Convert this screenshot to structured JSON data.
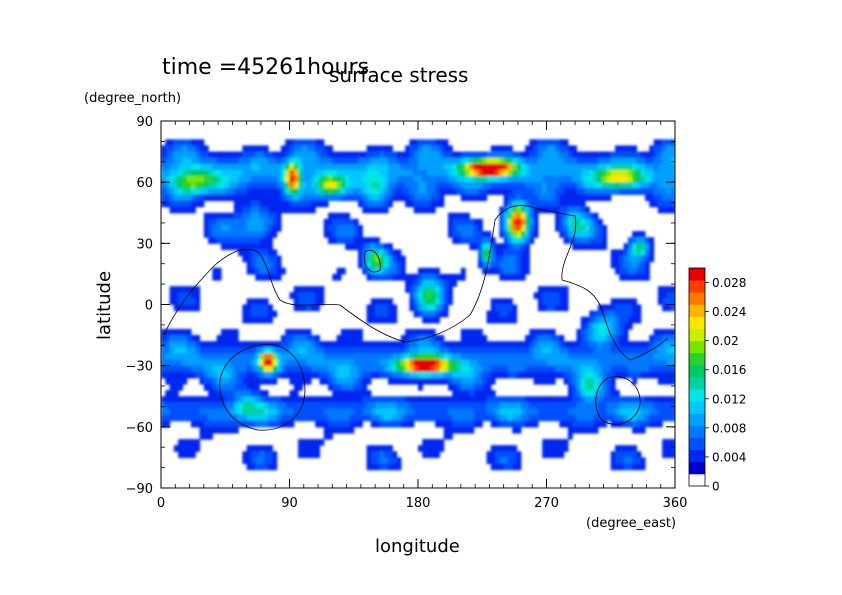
{
  "chart_data": {
    "type": "heatmap",
    "time_label": "time =45261hours",
    "title": "surface stress",
    "xlabel": "longitude",
    "ylabel": "latitude",
    "x_unit": "(degree_east)",
    "y_unit": "(degree_north)",
    "xlim": [
      0,
      360
    ],
    "ylim": [
      -90,
      90
    ],
    "x_ticks": [
      "0",
      "90",
      "180",
      "270",
      "360"
    ],
    "y_ticks": [
      "90",
      "60",
      "30",
      "0",
      "−30",
      "−60",
      "−90"
    ],
    "colorbar": {
      "range": [
        0,
        0.03
      ],
      "ticks": [
        "0",
        "0.004",
        "0.008",
        "0.012",
        "0.016",
        "0.02",
        "0.024",
        "0.028"
      ],
      "colors": [
        "#ffffff",
        "#0000c8",
        "#0028f0",
        "#0050ff",
        "#0078ff",
        "#00a0ff",
        "#00c8ff",
        "#00e6e6",
        "#00d2a0",
        "#00c864",
        "#28d228",
        "#78e600",
        "#c8f000",
        "#ffe600",
        "#ffb400",
        "#ff7800",
        "#ff3c00",
        "#e60000"
      ]
    },
    "hotspots": [
      {
        "lon": 230,
        "lat": 67,
        "value": 0.03,
        "rlon": 18,
        "rlat": 4
      },
      {
        "lon": 250,
        "lat": 40,
        "value": 0.029,
        "rlon": 8,
        "rlat": 9
      },
      {
        "lon": 185,
        "lat": -30,
        "value": 0.029,
        "rlon": 18,
        "rlat": 4
      },
      {
        "lon": 75,
        "lat": -28,
        "value": 0.028,
        "rlon": 6,
        "rlat": 5
      },
      {
        "lon": 92,
        "lat": 62,
        "value": 0.024,
        "rlon": 5,
        "rlat": 7
      },
      {
        "lon": 118,
        "lat": 58,
        "value": 0.018,
        "rlon": 10,
        "rlat": 5
      },
      {
        "lon": 322,
        "lat": 62,
        "value": 0.016,
        "rlon": 16,
        "rlat": 5
      },
      {
        "lon": 335,
        "lat": 28,
        "value": 0.014,
        "rlon": 7,
        "rlat": 5
      },
      {
        "lon": 228,
        "lat": 25,
        "value": 0.016,
        "rlon": 4,
        "rlat": 6
      },
      {
        "lon": 150,
        "lat": 22,
        "value": 0.014,
        "rlon": 8,
        "rlat": 7
      },
      {
        "lon": 188,
        "lat": 5,
        "value": 0.012,
        "rlon": 10,
        "rlat": 10
      },
      {
        "lon": 25,
        "lat": 60,
        "value": 0.014,
        "rlon": 15,
        "rlat": 6
      },
      {
        "lon": 290,
        "lat": 40,
        "value": 0.01,
        "rlon": 10,
        "rlat": 8
      },
      {
        "lon": 150,
        "lat": 55,
        "value": 0.01,
        "rlon": 10,
        "rlat": 8
      },
      {
        "lon": 65,
        "lat": 40,
        "value": 0.008,
        "rlon": 14,
        "rlat": 10
      },
      {
        "lon": 310,
        "lat": -12,
        "value": 0.01,
        "rlon": 12,
        "rlat": 8
      },
      {
        "lon": 60,
        "lat": -50,
        "value": 0.008,
        "rlon": 10,
        "rlat": 8
      },
      {
        "lon": 300,
        "lat": -42,
        "value": 0.008,
        "rlon": 10,
        "rlat": 6
      }
    ],
    "bands": [
      {
        "lat": 65,
        "value": 0.007,
        "width": 9
      },
      {
        "lat": -28,
        "value": 0.006,
        "width": 8
      },
      {
        "lat": -52,
        "value": 0.005,
        "width": 6
      }
    ],
    "contour_line": "coastline"
  }
}
